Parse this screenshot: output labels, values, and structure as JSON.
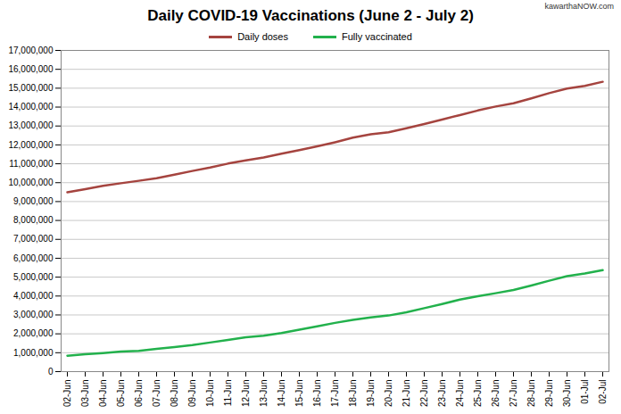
{
  "chart_data": {
    "type": "line",
    "title": "Daily COVID-19 Vaccinations (June 2 - July 2)",
    "annotations": [
      "kawarthaNOW.com"
    ],
    "categories": [
      "02-Jun",
      "03-Jun",
      "04-Jun",
      "05-Jun",
      "06-Jun",
      "07-Jun",
      "08-Jun",
      "09-Jun",
      "10-Jun",
      "11-Jun",
      "12-Jun",
      "13-Jun",
      "14-Jun",
      "15-Jun",
      "16-Jun",
      "17-Jun",
      "18-Jun",
      "19-Jun",
      "20-Jun",
      "21-Jun",
      "22-Jun",
      "23-Jun",
      "24-Jun",
      "25-Jun",
      "26-Jun",
      "27-Jun",
      "28-Jun",
      "29-Jun",
      "30-Jun",
      "01-Jul",
      "02-Jul"
    ],
    "series": [
      {
        "name": "Daily doses",
        "color": "#a5443f",
        "values": [
          9490000,
          9660000,
          9830000,
          9970000,
          10100000,
          10240000,
          10420000,
          10620000,
          10800000,
          11010000,
          11180000,
          11330000,
          11530000,
          11720000,
          11920000,
          12140000,
          12380000,
          12560000,
          12670000,
          12880000,
          13100000,
          13340000,
          13580000,
          13820000,
          14030000,
          14200000,
          14460000,
          14740000,
          14980000,
          15120000,
          15340000
        ]
      },
      {
        "name": "Fully vaccinated",
        "color": "#22b14c",
        "values": [
          840000,
          920000,
          980000,
          1060000,
          1100000,
          1200000,
          1300000,
          1400000,
          1540000,
          1680000,
          1820000,
          1900000,
          2040000,
          2220000,
          2400000,
          2580000,
          2740000,
          2870000,
          2970000,
          3140000,
          3360000,
          3580000,
          3810000,
          3990000,
          4150000,
          4320000,
          4560000,
          4810000,
          5050000,
          5190000,
          5370000
        ]
      }
    ],
    "ylim": [
      0,
      17000000
    ],
    "yticks": [
      0,
      {
        "value": 1000000,
        "label": "1,000,000"
      },
      {
        "value": 2000000,
        "label": "2,000,000"
      },
      {
        "value": 3000000,
        "label": "3,000,000"
      },
      {
        "value": 4000000,
        "label": "4,000,000"
      },
      {
        "value": 5000000,
        "label": "5,000,000"
      },
      {
        "value": 6000000,
        "label": "6,000,000"
      },
      {
        "value": 7000000,
        "label": "7,000,000"
      },
      {
        "value": 8000000,
        "label": "8,000,000"
      },
      {
        "value": 9000000,
        "label": "9,000,000"
      },
      {
        "value": 10000000,
        "label": "10,000,000"
      },
      {
        "value": 11000000,
        "label": "11,000,000"
      },
      {
        "value": 12000000,
        "label": "12,000,000"
      },
      {
        "value": 13000000,
        "label": "13,000,000"
      },
      {
        "value": 14000000,
        "label": "14,000,000"
      },
      {
        "value": 15000000,
        "label": "15,000,000"
      },
      {
        "value": 16000000,
        "label": "16,000,000"
      },
      {
        "value": 17000000,
        "label": "17,000,000"
      }
    ],
    "grid": true,
    "legend": "top"
  }
}
